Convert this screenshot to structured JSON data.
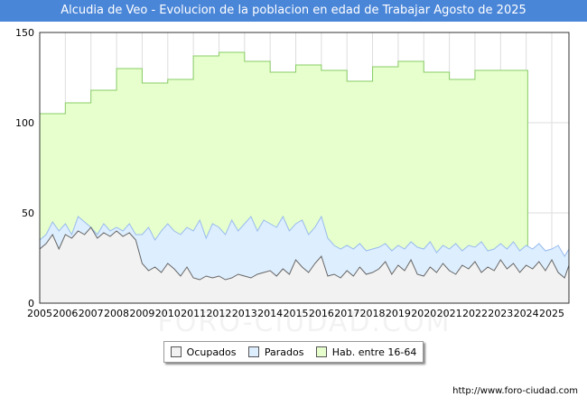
{
  "header": {
    "title": "Alcudia de Veo - Evolucion de la poblacion en edad de Trabajar Agosto de 2025"
  },
  "footer": {
    "source": "http://www.foro-ciudad.com"
  },
  "watermark": "FORO-CIUDAD.COM",
  "chart_data": {
    "type": "area",
    "title": "Alcudia de Veo - Evolucion de la poblacion en edad de Trabajar Agosto de 2025",
    "xlabel": "",
    "ylabel": "",
    "x_ticks": [
      "2005",
      "2006",
      "2007",
      "2008",
      "2009",
      "2010",
      "2011",
      "2012",
      "2013",
      "2014",
      "2015",
      "2016",
      "2017",
      "2018",
      "2019",
      "2020",
      "2021",
      "2022",
      "2023",
      "2024",
      "2025"
    ],
    "y_ticks": [
      0,
      50,
      100,
      150
    ],
    "xlim": [
      2005,
      2025.67
    ],
    "ylim": [
      0,
      150
    ],
    "grid": true,
    "legend_position": "bottom-center",
    "colors": {
      "ocupados_fill": "#f2f2f2",
      "ocupados_line": "#666666",
      "parados_fill": "#ddeeff",
      "parados_line": "#99bbee",
      "hab_fill": "#e6ffcc",
      "hab_line": "#88cc66"
    },
    "series": [
      {
        "name": "Hab. entre 16-64",
        "step": true,
        "x": [
          2005,
          2006,
          2007,
          2008,
          2009,
          2010,
          2011,
          2012,
          2013,
          2014,
          2015,
          2016,
          2017,
          2018,
          2019,
          2020,
          2021,
          2022,
          2023,
          2024
        ],
        "values": [
          105,
          111,
          118,
          130,
          122,
          124,
          137,
          139,
          134,
          128,
          132,
          129,
          123,
          131,
          134,
          128,
          124,
          129,
          129,
          129
        ]
      },
      {
        "name": "Parados",
        "x": [
          2005.0,
          2005.25,
          2005.5,
          2005.75,
          2006.0,
          2006.25,
          2006.5,
          2006.75,
          2007.0,
          2007.25,
          2007.5,
          2007.75,
          2008.0,
          2008.25,
          2008.5,
          2008.75,
          2009.0,
          2009.25,
          2009.5,
          2009.75,
          2010.0,
          2010.25,
          2010.5,
          2010.75,
          2011.0,
          2011.25,
          2011.5,
          2011.75,
          2012.0,
          2012.25,
          2012.5,
          2012.75,
          2013.0,
          2013.25,
          2013.5,
          2013.75,
          2014.0,
          2014.25,
          2014.5,
          2014.75,
          2015.0,
          2015.25,
          2015.5,
          2015.75,
          2016.0,
          2016.25,
          2016.5,
          2016.75,
          2017.0,
          2017.25,
          2017.5,
          2017.75,
          2018.0,
          2018.25,
          2018.5,
          2018.75,
          2019.0,
          2019.25,
          2019.5,
          2019.75,
          2020.0,
          2020.25,
          2020.5,
          2020.75,
          2021.0,
          2021.25,
          2021.5,
          2021.75,
          2022.0,
          2022.25,
          2022.5,
          2022.75,
          2023.0,
          2023.25,
          2023.5,
          2023.75,
          2024.0,
          2024.25,
          2024.5,
          2024.75,
          2025.0,
          2025.25,
          2025.5,
          2025.67
        ],
        "values": [
          35,
          38,
          45,
          40,
          44,
          38,
          48,
          45,
          42,
          38,
          44,
          40,
          42,
          40,
          44,
          38,
          38,
          42,
          35,
          40,
          44,
          40,
          38,
          42,
          40,
          46,
          36,
          44,
          42,
          38,
          46,
          40,
          44,
          48,
          40,
          46,
          44,
          42,
          48,
          40,
          44,
          46,
          38,
          42,
          48,
          36,
          32,
          30,
          32,
          30,
          33,
          29,
          30,
          31,
          33,
          29,
          32,
          30,
          34,
          31,
          30,
          34,
          28,
          32,
          30,
          33,
          29,
          32,
          31,
          34,
          29,
          30,
          33,
          30,
          34,
          29,
          32,
          30,
          33,
          29,
          30,
          32,
          26,
          30
        ]
      },
      {
        "name": "Ocupados",
        "x": [
          2005.0,
          2005.25,
          2005.5,
          2005.75,
          2006.0,
          2006.25,
          2006.5,
          2006.75,
          2007.0,
          2007.25,
          2007.5,
          2007.75,
          2008.0,
          2008.25,
          2008.5,
          2008.75,
          2009.0,
          2009.25,
          2009.5,
          2009.75,
          2010.0,
          2010.25,
          2010.5,
          2010.75,
          2011.0,
          2011.25,
          2011.5,
          2011.75,
          2012.0,
          2012.25,
          2012.5,
          2012.75,
          2013.0,
          2013.25,
          2013.5,
          2013.75,
          2014.0,
          2014.25,
          2014.5,
          2014.75,
          2015.0,
          2015.25,
          2015.5,
          2015.75,
          2016.0,
          2016.25,
          2016.5,
          2016.75,
          2017.0,
          2017.25,
          2017.5,
          2017.75,
          2018.0,
          2018.25,
          2018.5,
          2018.75,
          2019.0,
          2019.25,
          2019.5,
          2019.75,
          2020.0,
          2020.25,
          2020.5,
          2020.75,
          2021.0,
          2021.25,
          2021.5,
          2021.75,
          2022.0,
          2022.25,
          2022.5,
          2022.75,
          2023.0,
          2023.25,
          2023.5,
          2023.75,
          2024.0,
          2024.25,
          2024.5,
          2024.75,
          2025.0,
          2025.25,
          2025.5,
          2025.67
        ],
        "values": [
          30,
          33,
          38,
          30,
          38,
          36,
          40,
          38,
          42,
          36,
          39,
          37,
          40,
          37,
          39,
          35,
          22,
          18,
          20,
          17,
          22,
          19,
          15,
          20,
          14,
          13,
          15,
          14,
          15,
          13,
          14,
          16,
          15,
          14,
          16,
          17,
          18,
          15,
          19,
          16,
          24,
          20,
          17,
          22,
          26,
          15,
          16,
          14,
          18,
          15,
          20,
          16,
          17,
          19,
          23,
          16,
          21,
          18,
          24,
          16,
          15,
          20,
          17,
          22,
          18,
          16,
          21,
          19,
          23,
          17,
          20,
          18,
          24,
          19,
          22,
          17,
          21,
          19,
          23,
          18,
          24,
          17,
          14,
          21
        ]
      }
    ]
  },
  "legend": {
    "ocupados": "Ocupados",
    "parados": "Parados",
    "hab": "Hab. entre 16-64"
  }
}
